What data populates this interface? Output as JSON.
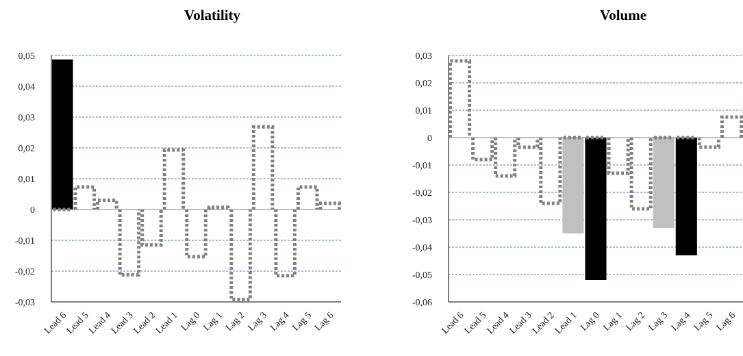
{
  "chart_data": [
    {
      "type": "bar",
      "title": "Volatility",
      "xlabel": "",
      "ylabel": "",
      "ylim": [
        -0.03,
        0.05
      ],
      "ytick_values": [
        0.05,
        0.04,
        0.03,
        0.02,
        0.01,
        0,
        -0.01,
        -0.02,
        -0.03
      ],
      "ytick_labels": [
        "0,05",
        "0,04",
        "0,03",
        "0,02",
        "0,01",
        "0",
        "-0,01",
        "-0,02",
        "-0,03"
      ],
      "categories": [
        "Lead 6",
        "Lead 5",
        "Lead 4",
        "Lead 3",
        "Lead 2",
        "Lead 1",
        "Lag 0",
        "Lag 1",
        "Lag 2",
        "Lag 3",
        "Lag 4",
        "Lag 5",
        "Lag 6"
      ],
      "grid": true,
      "series": [
        {
          "style": "solid-black",
          "values": [
            0.0487,
            null,
            null,
            null,
            null,
            null,
            null,
            null,
            null,
            null,
            null,
            null,
            null
          ]
        },
        {
          "style": "solid-gray",
          "values": [
            null,
            null,
            null,
            null,
            null,
            null,
            null,
            null,
            null,
            null,
            null,
            null,
            null
          ]
        },
        {
          "style": "dotted-outline",
          "values": [
            0,
            0.0073,
            0.003,
            -0.0212,
            -0.0115,
            0.0193,
            -0.0153,
            0.0007,
            -0.0292,
            0.0268,
            -0.0215,
            0.0073,
            0.002
          ]
        }
      ]
    },
    {
      "type": "bar",
      "title": "Volume",
      "xlabel": "",
      "ylabel": "",
      "ylim": [
        -0.06,
        0.03
      ],
      "ytick_values": [
        0.03,
        0.02,
        0.01,
        0,
        -0.01,
        -0.02,
        -0.03,
        -0.04,
        -0.05,
        -0.06
      ],
      "ytick_labels": [
        "0,03",
        "0,02",
        "0,01",
        "0",
        "-0,01",
        "-0,02",
        "-0,03",
        "-0,04",
        "-0,05",
        "-0,06"
      ],
      "categories": [
        "Lead 6",
        "Lead 5",
        "Lead 4",
        "Lead 3",
        "Lead 2",
        "Lead 1",
        "Lag 0",
        "Lag 1",
        "Lag 2",
        "Lag 3",
        "Lag 4",
        "Lag 5",
        "Lag 6"
      ],
      "grid": true,
      "series": [
        {
          "style": "solid-black",
          "values": [
            null,
            null,
            null,
            null,
            null,
            null,
            -0.052,
            null,
            null,
            null,
            -0.043,
            null,
            null
          ]
        },
        {
          "style": "solid-gray",
          "values": [
            null,
            null,
            null,
            null,
            null,
            -0.035,
            null,
            null,
            null,
            -0.033,
            null,
            null,
            null
          ]
        },
        {
          "style": "dotted-outline",
          "values": [
            0.028,
            -0.008,
            -0.014,
            -0.0035,
            -0.024,
            0,
            0,
            -0.013,
            -0.026,
            0,
            0,
            -0.0035,
            0.0075
          ]
        }
      ]
    }
  ],
  "colors": {
    "grid": "#4a7ebb",
    "axis": "#000000",
    "black_bar": "#000000",
    "gray_bar": "#c0c0c0",
    "dotted_outline": "#808080"
  }
}
